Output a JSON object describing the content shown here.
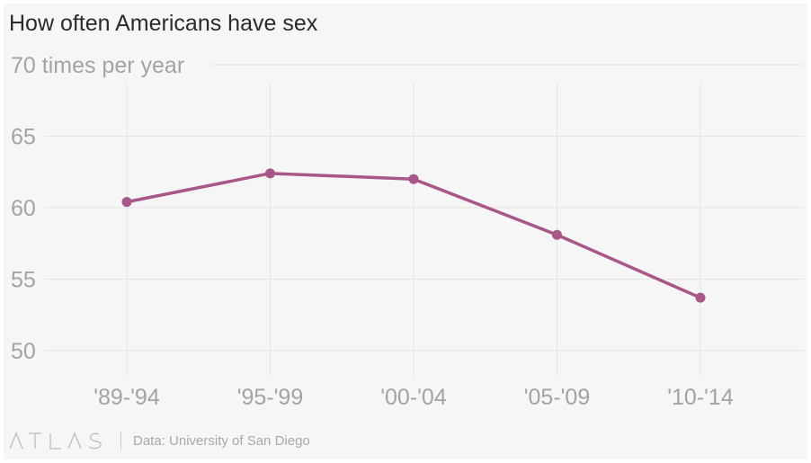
{
  "chart_data": {
    "type": "line",
    "title": "How often Americans have sex",
    "categories": [
      "'89-'94",
      "'95-'99",
      "'00-'04",
      "'05-'09",
      "'10-'14"
    ],
    "series": [
      {
        "values": [
          60.4,
          62.4,
          62.0,
          58.1,
          53.7
        ],
        "color": "#a85788"
      }
    ],
    "ylim": [
      50,
      70
    ],
    "yticks": [
      70,
      65,
      60,
      55,
      50
    ],
    "ytick_labels": [
      "70 times per year",
      "65",
      "60",
      "55",
      "50"
    ],
    "grid": true
  },
  "footer": {
    "brand": "ATLAS",
    "source": "Data: University of San Diego"
  },
  "colors": {
    "background": "#f6f6f6",
    "line": "#a85788",
    "grid": "#e4e4e4",
    "tick_text": "#a3a3a3"
  }
}
